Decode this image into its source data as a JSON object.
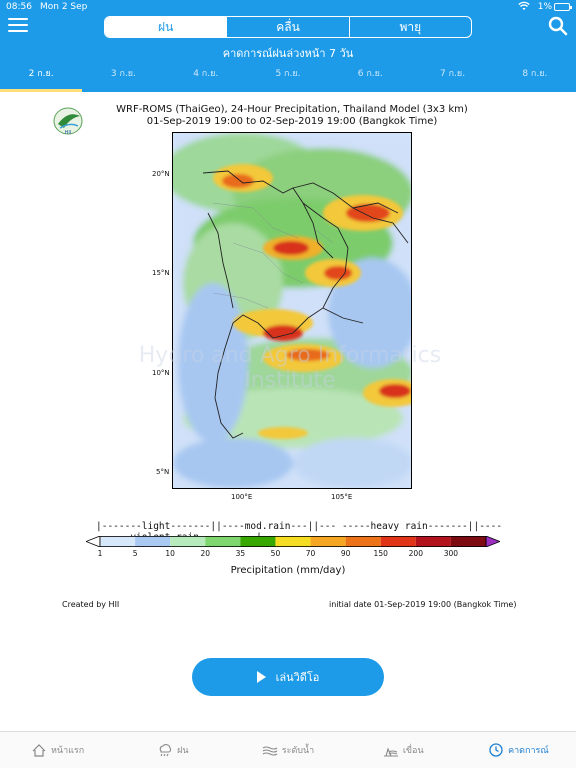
{
  "status": {
    "time": "08:56",
    "date": "Mon 2 Sep",
    "battery": "1%"
  },
  "segments": [
    {
      "label": "ฝน",
      "active": true
    },
    {
      "label": "คลื่น",
      "active": false
    },
    {
      "label": "พายุ",
      "active": false
    }
  ],
  "subtitle": "คาดการณ์ฝนล่วงหน้า 7 วัน",
  "days": [
    "2 ก.ย.",
    "3 ก.ย.",
    "4 ก.ย.",
    "5 ก.ย.",
    "6 ก.ย.",
    "7 ก.ย.",
    "8 ก.ย."
  ],
  "active_day_index": 0,
  "chart": {
    "title_line1": "WRF-ROMS (ThaiGeo), 24-Hour Precipitation, Thailand Model (3x3 km)",
    "title_line2": "01-Sep-2019 19:00 to 02-Sep-2019 19:00 (Bangkok Time)",
    "logo_text": "HII",
    "lat_labels": [
      "20°N",
      "15°N",
      "10°N",
      "5°N"
    ],
    "lon_labels": [
      "100°E",
      "105°E"
    ],
    "watermark": "Hydro and Agro Informatics Institute"
  },
  "colorbar": {
    "caption": "|-------light-------||----mod.rain---||--- -----heavy rain-------||----------violent rain----------|",
    "ticks": [
      "1",
      "5",
      "10",
      "20",
      "35",
      "50",
      "70",
      "90",
      "150",
      "200",
      "300"
    ],
    "colors": [
      "#d8e8fb",
      "#a9c9f2",
      "#b7ebbd",
      "#7fd66e",
      "#38a800",
      "#f5dd22",
      "#f5a623",
      "#ec7317",
      "#e03519",
      "#b3131c",
      "#7d0c12"
    ],
    "label": "Precipitation (mm/day)"
  },
  "footer_left": "Created by HII",
  "footer_right": "initial date 01-Sep-2019 19:00 (Bangkok Time)",
  "play_button": "เล่นวิดีโอ",
  "tabs": [
    {
      "label": "หน้าแรก",
      "icon": "home-icon",
      "active": false
    },
    {
      "label": "ฝน",
      "icon": "rain-cloud-icon",
      "active": false
    },
    {
      "label": "ระดับน้ำ",
      "icon": "water-level-icon",
      "active": false
    },
    {
      "label": "เขื่อน",
      "icon": "dam-icon",
      "active": false
    },
    {
      "label": "คาดการณ์",
      "icon": "clock-icon",
      "active": true
    }
  ]
}
